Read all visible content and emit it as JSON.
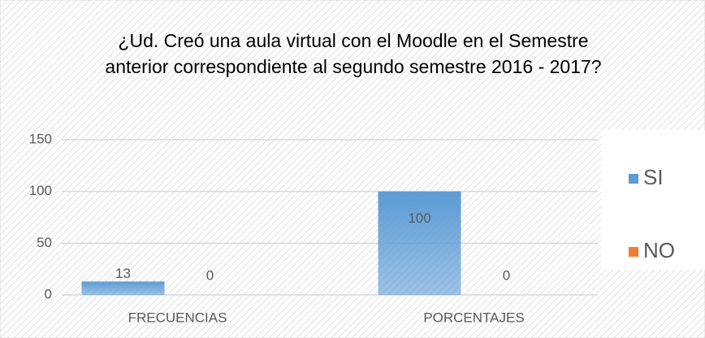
{
  "chart_data": {
    "type": "bar",
    "title": "¿Ud. Creó una aula virtual con  el Moodle en el Semestre anterior correspondiente al segundo semestre 2016 - 2017?",
    "categories": [
      "FRECUENCIAS",
      "PORCENTAJES"
    ],
    "series": [
      {
        "name": "SI",
        "color": "#5b9bd5",
        "values": [
          13,
          100
        ]
      },
      {
        "name": "NO",
        "color": "#ed7d31",
        "values": [
          0,
          0
        ]
      }
    ],
    "ylim": [
      0,
      150
    ],
    "yticks": [
      0,
      50,
      100,
      150
    ],
    "grid": true,
    "legend": "right"
  }
}
